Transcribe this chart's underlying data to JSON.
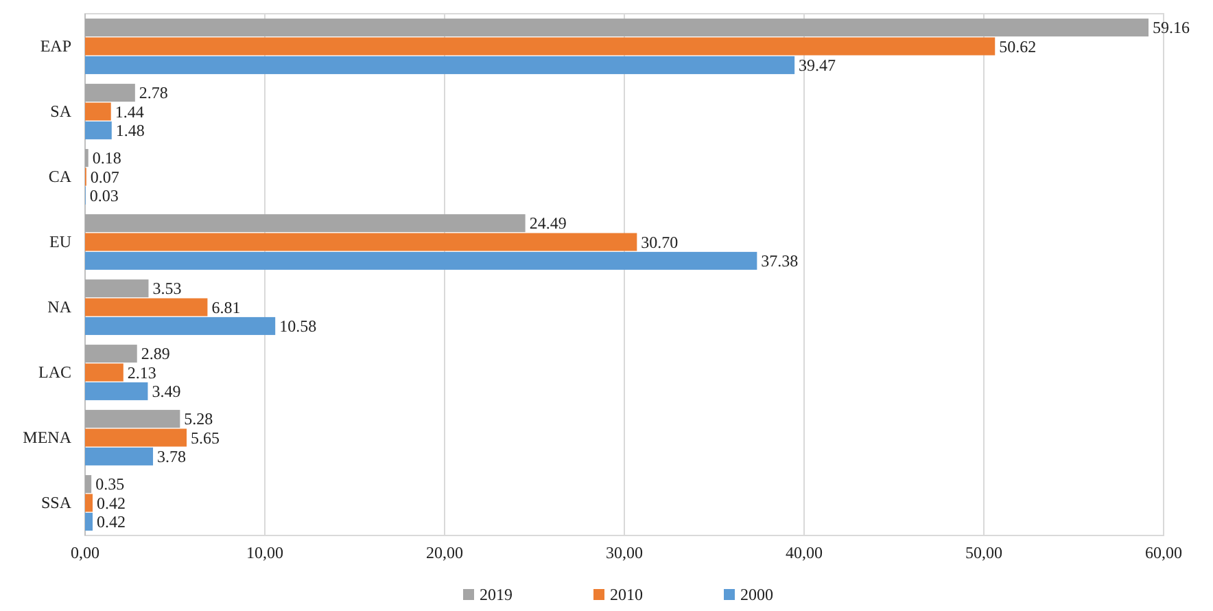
{
  "chart_data": {
    "type": "bar",
    "orientation": "horizontal",
    "categories": [
      "EAP",
      "SA",
      "CA",
      "EU",
      "NA",
      "LAC",
      "MENA",
      "SSA"
    ],
    "series": [
      {
        "name": "2019",
        "color": "#a5a5a5",
        "values": [
          59.16,
          2.78,
          0.18,
          24.49,
          3.53,
          2.89,
          5.28,
          0.35
        ],
        "value_labels": [
          "59.16",
          "2.78",
          "0.18",
          "24.49",
          "3.53",
          "2.89",
          "5.28",
          "0.35"
        ]
      },
      {
        "name": "2010",
        "color": "#ed7d31",
        "values": [
          50.62,
          1.44,
          0.07,
          30.7,
          6.81,
          2.13,
          5.65,
          0.42
        ],
        "value_labels": [
          "50.62",
          "1.44",
          "0.07",
          "30.70",
          "6.81",
          "2.13",
          "5.65",
          "0.42"
        ]
      },
      {
        "name": "2000",
        "color": "#5b9bd5",
        "values": [
          39.47,
          1.48,
          0.03,
          37.38,
          10.58,
          3.49,
          3.78,
          0.42
        ],
        "value_labels": [
          "39.47",
          "1.48",
          "0.03",
          "37.38",
          "10.58",
          "3.49",
          "3.78",
          "0.42"
        ]
      }
    ],
    "xlim": [
      0,
      60
    ],
    "xticks": [
      {
        "value": 0,
        "label": "0,00"
      },
      {
        "value": 10,
        "label": "10,00"
      },
      {
        "value": 20,
        "label": "20,00"
      },
      {
        "value": 30,
        "label": "30,00"
      },
      {
        "value": 40,
        "label": "40,00"
      },
      {
        "value": 50,
        "label": "50,00"
      },
      {
        "value": 60,
        "label": "60,00"
      }
    ],
    "grid": "x",
    "legend": "bottom"
  }
}
